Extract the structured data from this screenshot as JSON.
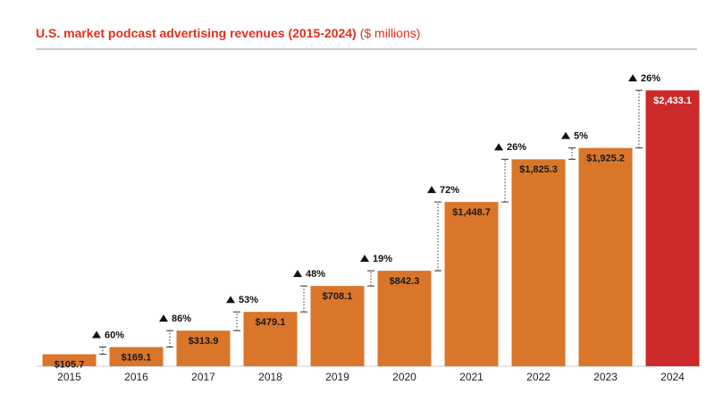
{
  "chart_data": {
    "type": "bar",
    "title": "U.S. market podcast advertising revenues (2015-2024)",
    "subtitle": "($ millions)",
    "categories": [
      "2015",
      "2016",
      "2017",
      "2018",
      "2019",
      "2020",
      "2021",
      "2022",
      "2023",
      "2024"
    ],
    "values": [
      105.7,
      169.1,
      313.9,
      479.1,
      708.1,
      842.3,
      1448.7,
      1825.3,
      1925.2,
      2433.1
    ],
    "value_labels": [
      "$105.7",
      "$169.1",
      "$313.9",
      "$479.1",
      "$708.1",
      "$842.3",
      "$1,448.7",
      "$1,825.3",
      "$1,925.2",
      "$2,433.1"
    ],
    "colors": [
      "#d9762a",
      "#d9762a",
      "#d9762a",
      "#d9762a",
      "#d9762a",
      "#d9762a",
      "#d9762a",
      "#d9762a",
      "#d9762a",
      "#cc2a2a"
    ],
    "growth": {
      "values": [
        60,
        86,
        53,
        48,
        19,
        72,
        26,
        5,
        26
      ],
      "value_labels": [
        "60%",
        "86%",
        "53%",
        "48%",
        "19%",
        "72%",
        "26%",
        "5%",
        "26%"
      ]
    },
    "ylim": [
      0,
      2600
    ]
  }
}
